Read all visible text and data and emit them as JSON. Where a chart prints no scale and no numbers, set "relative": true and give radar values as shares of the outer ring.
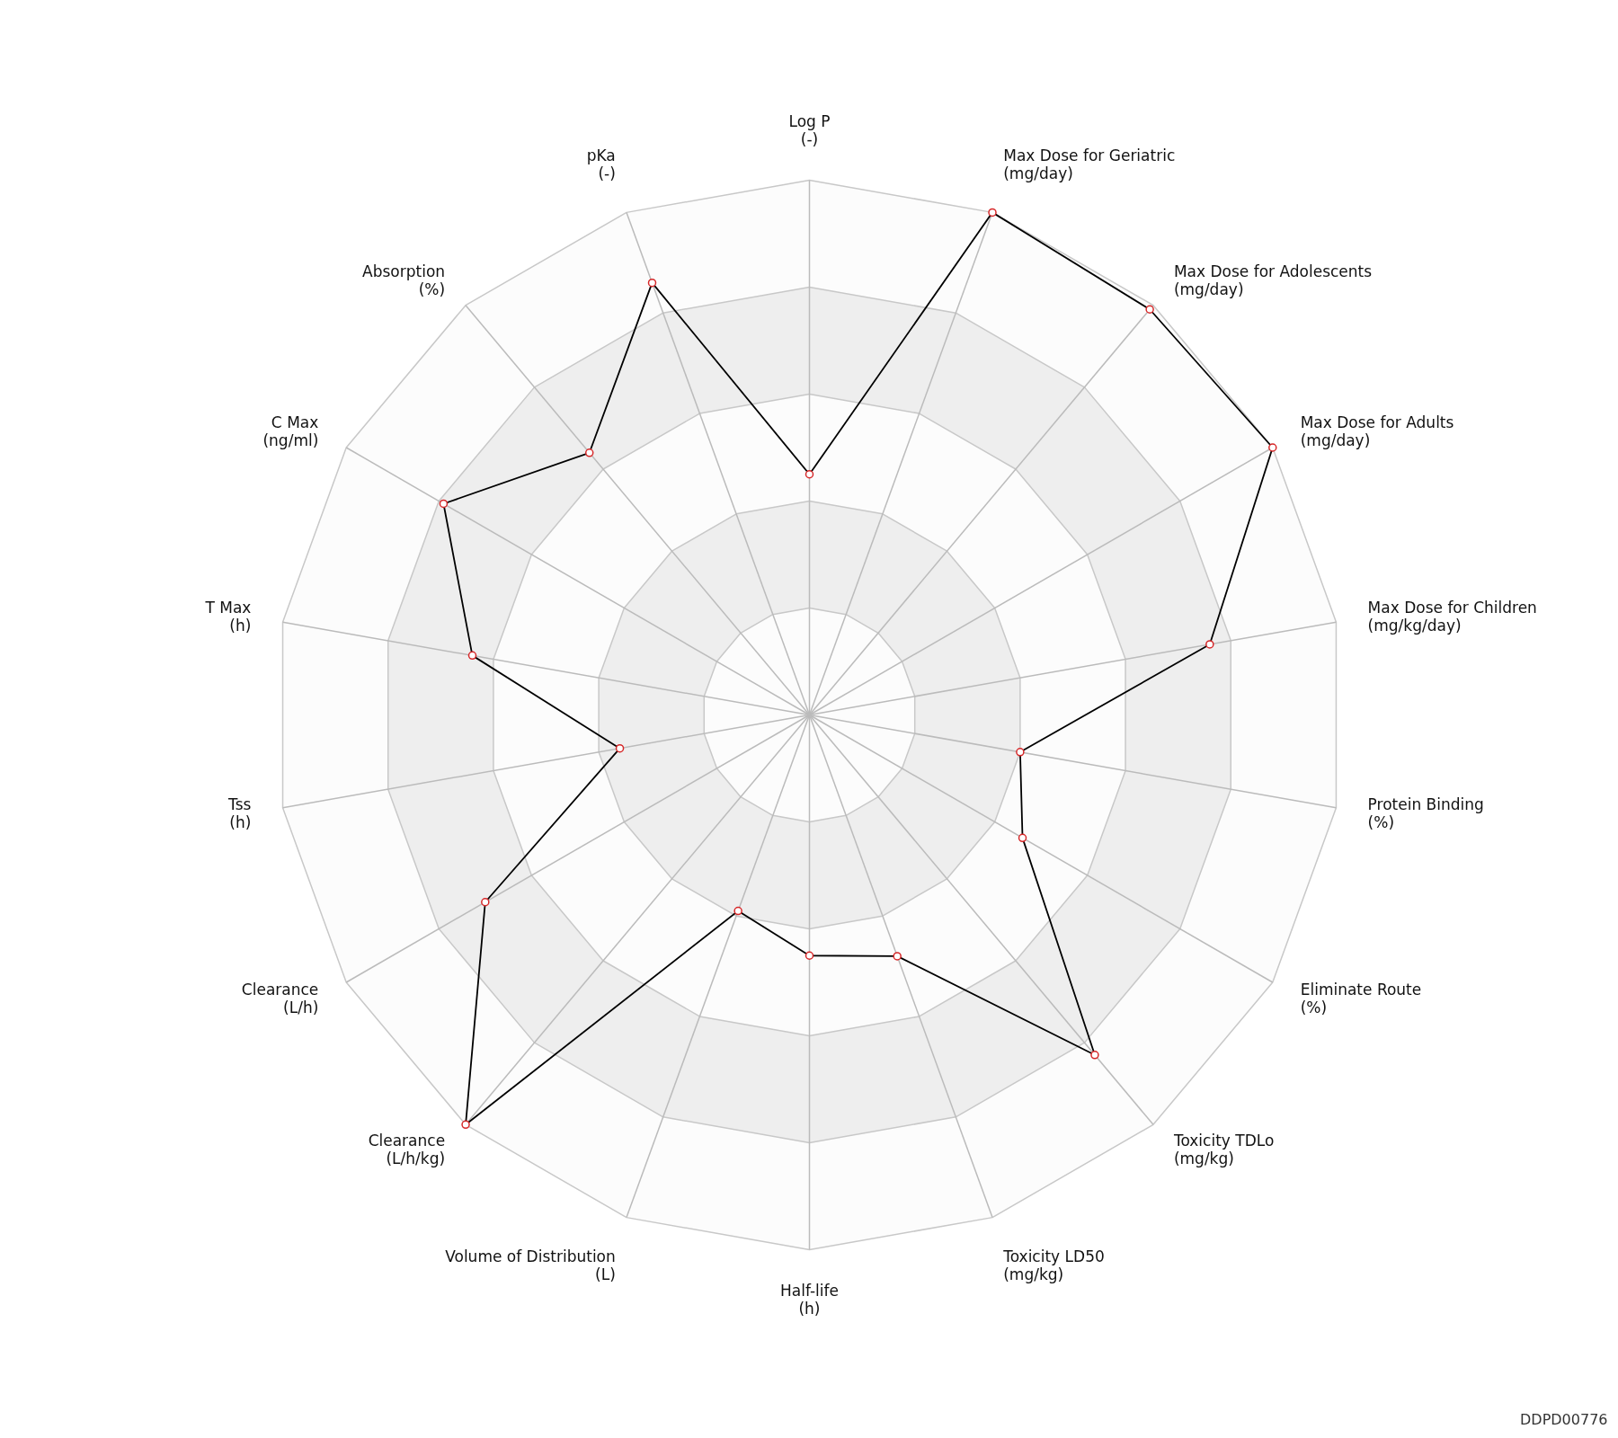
{
  "chart_data": {
    "type": "radar",
    "relative": true,
    "grid": true,
    "marker": "circle",
    "line_style": "solid",
    "categories": [
      "Log P\n(-)",
      "Max Dose for Geriatric\n(mg/day)",
      "Max Dose for Adolescents\n(mg/day)",
      "Max Dose for Adults\n(mg/day)",
      "Max Dose for Children\n(mg/kg/day)",
      "Protein Binding\n(%)",
      "Eliminate Route\n(%)",
      "Toxicity TDLo\n(mg/kg)",
      "Toxicity LD50\n(mg/kg)",
      "Half-life\n(h)",
      "Volume of Distribution\n(L)",
      "Clearance\n(L/h/kg)",
      "Clearance\n(L/h)",
      "Tss\n(h)",
      "T Max\n(h)",
      "C Max\n(ng/ml)",
      "Absorption\n(%)",
      "pKa\n(-)"
    ],
    "series": [
      {
        "color": "#000000",
        "values": [
          0.45,
          1.0,
          0.99,
          1.0,
          0.76,
          0.4,
          0.46,
          0.83,
          0.48,
          0.45,
          0.39,
          1.0,
          0.7,
          0.36,
          0.64,
          0.79,
          0.64,
          0.86
        ]
      }
    ],
    "annotations": [
      "DDPD00776"
    ]
  }
}
